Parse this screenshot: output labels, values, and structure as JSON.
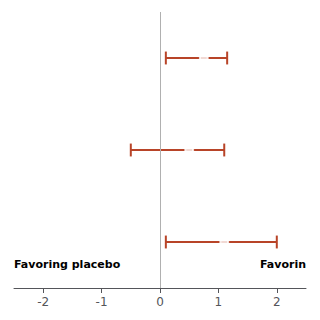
{
  "chart_data": {
    "type": "forest",
    "orientation": "horizontal",
    "categories": [
      null,
      null,
      null
    ],
    "values": [
      0.75,
      0.5,
      1.1
    ],
    "ci_low": [
      0.1,
      -0.5,
      0.1
    ],
    "ci_high": [
      1.15,
      1.1,
      2.0
    ],
    "reference_line": 0,
    "xlim": [
      -2.5,
      2.5
    ],
    "xticks": [
      -2,
      -1,
      0,
      1,
      2
    ],
    "annotations": [
      "Favoring placebo",
      "Favorin"
    ],
    "color": "#b84428",
    "marker": "circle",
    "grid": false,
    "tick_labels": "x"
  }
}
